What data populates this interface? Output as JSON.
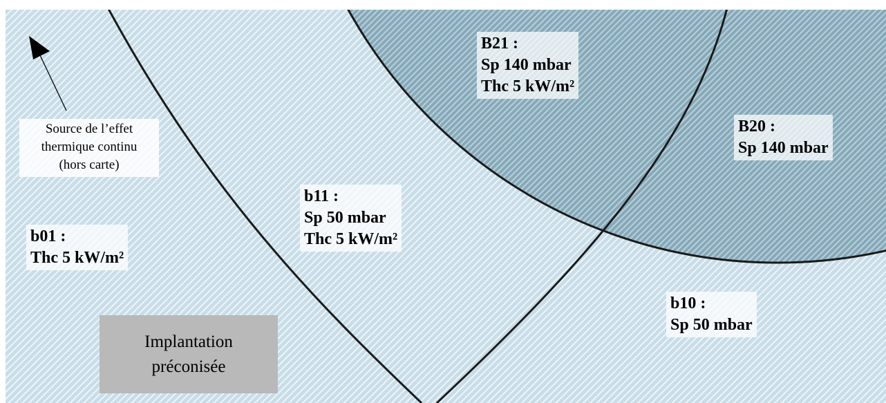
{
  "colors": {
    "outer_zone": "#cfe3ec",
    "inner_zone": "#8fb3c3",
    "hatch": "#ffffff",
    "boundary": "#1b1b1b",
    "recommended_box": "#b9b9b9"
  },
  "zones": {
    "b01": {
      "title": "b01 :",
      "lines": [
        "Thc 5 kW/m²"
      ]
    },
    "b11": {
      "title": "b11 :",
      "lines": [
        "Sp 50 mbar",
        "Thc 5 kW/m²"
      ]
    },
    "B21": {
      "title": "B21 :",
      "lines": [
        "Sp 140 mbar",
        "Thc 5 kW/m²"
      ]
    },
    "B20": {
      "title": "B20 :",
      "lines": [
        "Sp 140 mbar"
      ]
    },
    "b10": {
      "title": "b10 :",
      "lines": [
        "Sp 50 mbar"
      ]
    }
  },
  "source_note": {
    "lines": [
      "Source de l’effet",
      "thermique continu",
      "(hors carte)"
    ]
  },
  "recommended": {
    "lines": [
      "Implantation",
      "préconisée"
    ]
  }
}
